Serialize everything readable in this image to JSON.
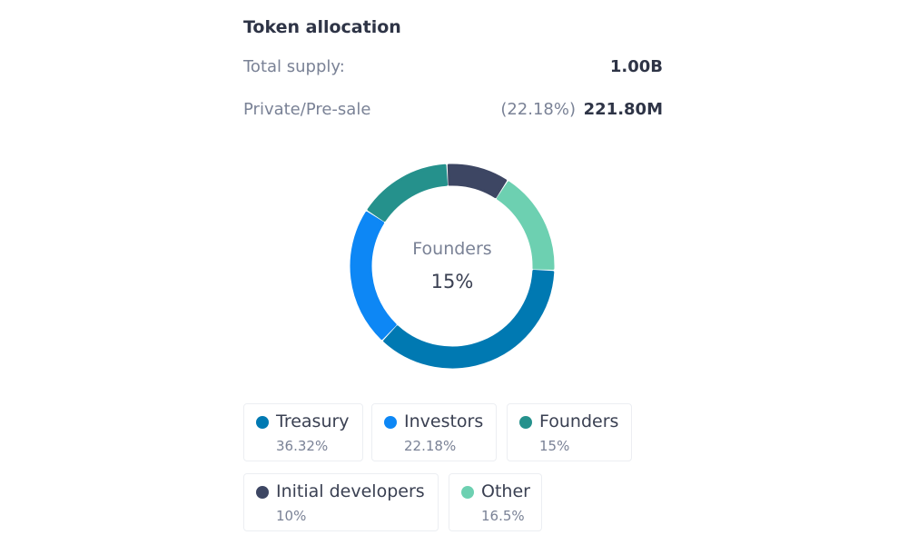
{
  "title": "Token allocation",
  "total_supply": {
    "label": "Total supply:",
    "value": "1.00B"
  },
  "presale": {
    "label": "Private/Pre-sale",
    "percent": "(22.18%)",
    "value": "221.80M"
  },
  "center": {
    "label": "Founders",
    "value": "15%"
  },
  "chart_data": {
    "type": "pie",
    "variant": "donut",
    "categories": [
      "Initial developers",
      "Other",
      "Treasury",
      "Investors",
      "Founders"
    ],
    "values": [
      10,
      16.5,
      36.32,
      22.18,
      15
    ],
    "colors": [
      "#3d4663",
      "#6dd0b1",
      "#0079b2",
      "#0d87f5",
      "#25918c"
    ],
    "legend": [
      {
        "name": "Treasury",
        "value": "36.32%",
        "color": "#0079b2"
      },
      {
        "name": "Investors",
        "value": "22.18%",
        "color": "#0d87f5"
      },
      {
        "name": "Founders",
        "value": "15%",
        "color": "#25918c"
      },
      {
        "name": "Initial developers",
        "value": "10%",
        "color": "#3d4663"
      },
      {
        "name": "Other",
        "value": "16.5%",
        "color": "#6dd0b1"
      }
    ],
    "legend_position": "bottom"
  }
}
